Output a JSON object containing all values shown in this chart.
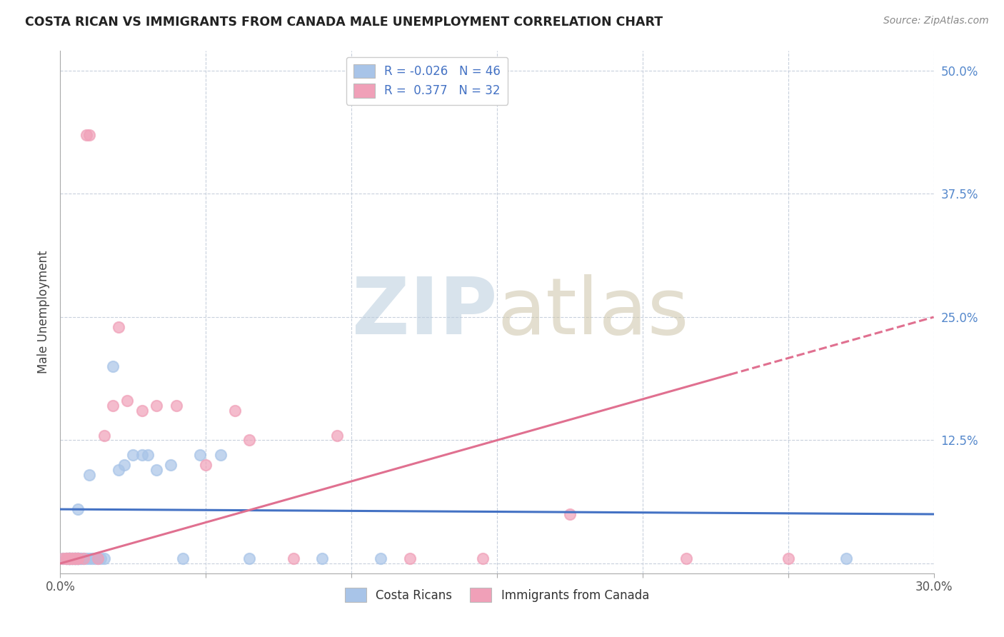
{
  "title": "COSTA RICAN VS IMMIGRANTS FROM CANADA MALE UNEMPLOYMENT CORRELATION CHART",
  "source": "Source: ZipAtlas.com",
  "ylabel": "Male Unemployment",
  "xlim": [
    0.0,
    0.3
  ],
  "ylim": [
    -0.01,
    0.52
  ],
  "xticks": [
    0.0,
    0.05,
    0.1,
    0.15,
    0.2,
    0.25,
    0.3
  ],
  "xticklabels": [
    "0.0%",
    "",
    "",
    "",
    "",
    "",
    "30.0%"
  ],
  "yticks": [
    0.0,
    0.125,
    0.25,
    0.375,
    0.5
  ],
  "yticklabels": [
    "",
    "12.5%",
    "25.0%",
    "37.5%",
    "50.0%"
  ],
  "color_cr": "#a8c4e8",
  "color_ca": "#f0a0b8",
  "color_line_cr": "#4472c4",
  "color_line_ca": "#e07090",
  "cr_x": [
    0.001,
    0.002,
    0.002,
    0.003,
    0.003,
    0.003,
    0.003,
    0.003,
    0.004,
    0.004,
    0.004,
    0.005,
    0.005,
    0.005,
    0.005,
    0.006,
    0.006,
    0.006,
    0.006,
    0.006,
    0.007,
    0.007,
    0.008,
    0.009,
    0.01,
    0.01,
    0.011,
    0.012,
    0.013,
    0.014,
    0.015,
    0.018,
    0.02,
    0.022,
    0.025,
    0.028,
    0.03,
    0.033,
    0.038,
    0.042,
    0.048,
    0.055,
    0.065,
    0.09,
    0.11,
    0.27
  ],
  "cr_y": [
    0.005,
    0.005,
    0.005,
    0.005,
    0.005,
    0.005,
    0.005,
    0.005,
    0.005,
    0.005,
    0.005,
    0.005,
    0.005,
    0.005,
    0.005,
    0.005,
    0.005,
    0.005,
    0.055,
    0.005,
    0.005,
    0.005,
    0.005,
    0.005,
    0.09,
    0.005,
    0.005,
    0.005,
    0.005,
    0.005,
    0.005,
    0.2,
    0.095,
    0.1,
    0.11,
    0.11,
    0.11,
    0.095,
    0.1,
    0.005,
    0.11,
    0.11,
    0.005,
    0.005,
    0.005,
    0.005
  ],
  "ca_x": [
    0.001,
    0.002,
    0.002,
    0.003,
    0.003,
    0.004,
    0.004,
    0.005,
    0.005,
    0.006,
    0.006,
    0.008,
    0.009,
    0.01,
    0.013,
    0.015,
    0.018,
    0.02,
    0.023,
    0.028,
    0.033,
    0.04,
    0.05,
    0.06,
    0.065,
    0.08,
    0.095,
    0.12,
    0.145,
    0.175,
    0.215,
    0.25
  ],
  "ca_y": [
    0.005,
    0.005,
    0.005,
    0.005,
    0.005,
    0.005,
    0.005,
    0.005,
    0.005,
    0.005,
    0.005,
    0.005,
    0.435,
    0.435,
    0.005,
    0.13,
    0.16,
    0.24,
    0.165,
    0.155,
    0.16,
    0.16,
    0.1,
    0.155,
    0.125,
    0.005,
    0.13,
    0.005,
    0.005,
    0.05,
    0.005,
    0.005
  ],
  "cr_line_x": [
    0.0,
    0.3
  ],
  "cr_line_y": [
    0.055,
    0.05
  ],
  "ca_line_x": [
    0.0,
    0.3
  ],
  "ca_line_y": [
    0.0,
    0.25
  ]
}
